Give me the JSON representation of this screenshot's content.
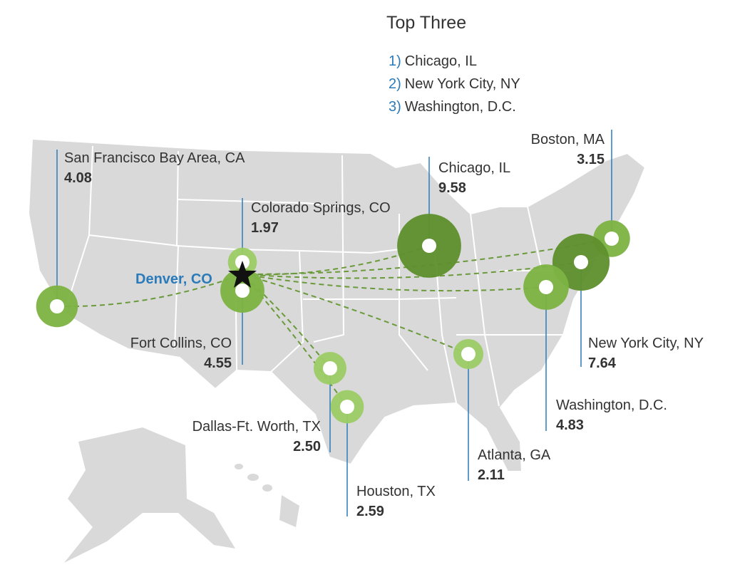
{
  "title": "Top Three",
  "top_three": [
    {
      "rank": "1)",
      "name": "Chicago, IL"
    },
    {
      "rank": "2)",
      "name": "New York City, NY"
    },
    {
      "rank": "3)",
      "name": "Washington, D.C."
    }
  ],
  "origin": "Denver, CO",
  "cities": {
    "names": [
      "San Francisco Bay Area, CA",
      "Colorado Springs, CO",
      "Fort Collins, CO",
      "Chicago, IL",
      "Boston, MA",
      "New York City, NY",
      "Washington, D.C.",
      "Atlanta, GA",
      "Dallas-Ft. Worth, TX",
      "Houston, TX"
    ],
    "values": [
      4.08,
      1.97,
      4.55,
      9.58,
      3.15,
      7.64,
      4.83,
      2.11,
      2.5,
      2.59
    ],
    "value_labels": [
      "4.08",
      "1.97",
      "4.55",
      "9.58",
      "3.15",
      "7.64",
      "4.83",
      "2.11",
      "2.50",
      "2.59"
    ]
  }
}
